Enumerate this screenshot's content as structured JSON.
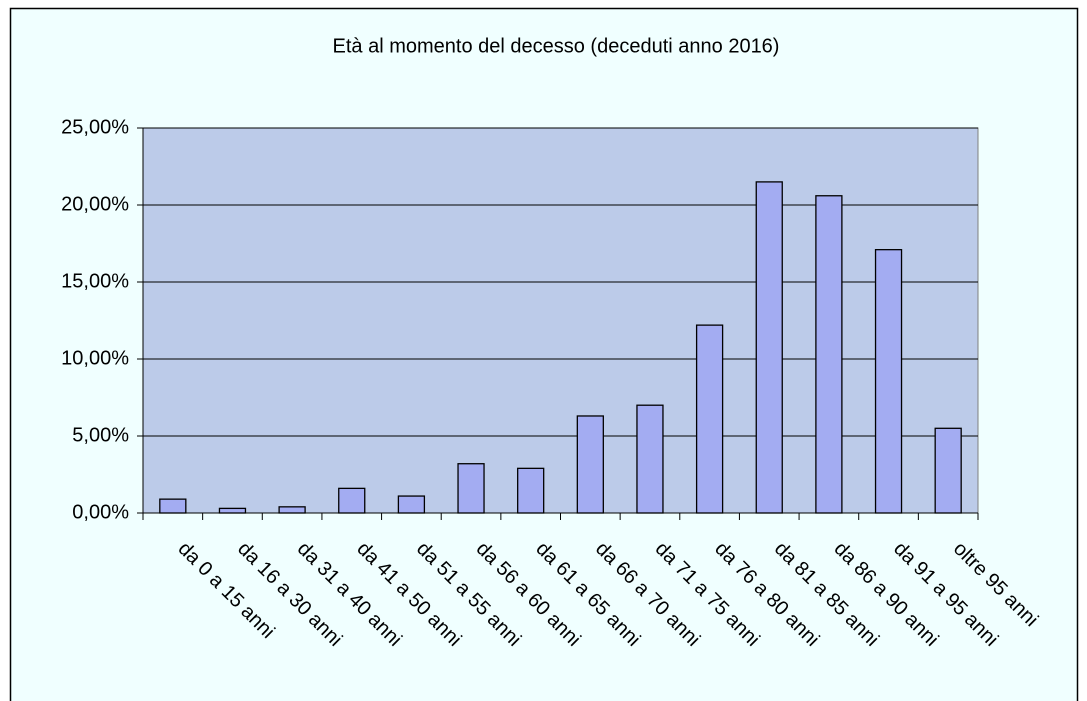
{
  "chart_data": {
    "type": "bar",
    "title": "Età al momento del decesso (deceduti anno 2016)",
    "categories": [
      "da 0 a 15 anni",
      "da 16 a 30 anni",
      "da 31 a 40 anni",
      "da 41 a 50 anni",
      "da 51 a 55 anni",
      "da 56 a 60 anni",
      "da 61 a 65 anni",
      "da 66 a 70 anni",
      "da 71 a 75 anni",
      "da 76 a 80 anni",
      "da 81 a 85 anni",
      "da 86 a 90 anni",
      "da 91 a 95 anni",
      "oltre 95 anni"
    ],
    "values": [
      0.9,
      0.3,
      0.4,
      1.6,
      1.1,
      3.2,
      2.9,
      6.3,
      7.0,
      12.2,
      21.5,
      20.6,
      17.1,
      5.5
    ],
    "color": "#a3acf2",
    "ylim": [
      0,
      25
    ],
    "yticks": [
      {
        "value": 0,
        "label": "0,00%"
      },
      {
        "value": 5,
        "label": "5,00%"
      },
      {
        "value": 10,
        "label": "10,00%"
      },
      {
        "value": 15,
        "label": "15,00%"
      },
      {
        "value": 20,
        "label": "20,00%"
      },
      {
        "value": 25,
        "label": "25,00%"
      }
    ],
    "grid": true
  }
}
